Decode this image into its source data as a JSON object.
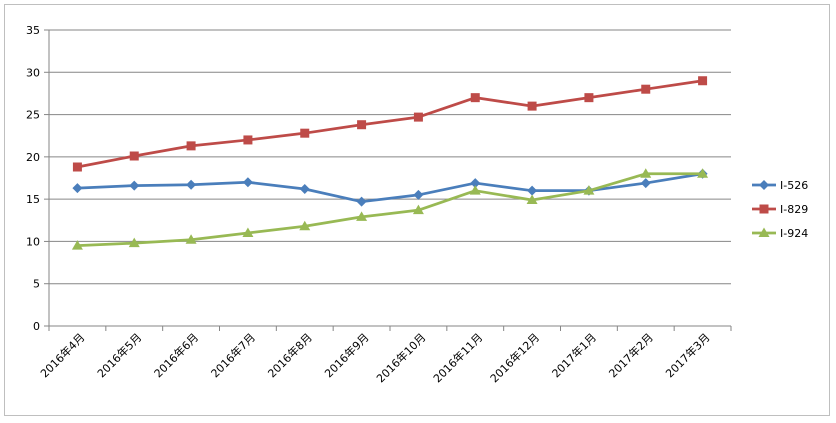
{
  "chart_data": {
    "type": "line",
    "categories": [
      "2016年4月",
      "2016年5月",
      "2016年6月",
      "2016年7月",
      "2016年8月",
      "2016年9月",
      "2016年10月",
      "2016年11月",
      "2016年12月",
      "2017年1月",
      "2017年2月",
      "2017年3月"
    ],
    "series": [
      {
        "name": "I-526",
        "color": "#4a7ebb",
        "marker": "diamond",
        "values": [
          16.3,
          16.6,
          16.7,
          17.0,
          16.2,
          14.7,
          15.5,
          16.9,
          16.0,
          16.0,
          16.9,
          18.0
        ]
      },
      {
        "name": "I-829",
        "color": "#be4b48",
        "marker": "square",
        "values": [
          18.8,
          20.1,
          21.3,
          22.0,
          22.8,
          23.8,
          24.7,
          27.0,
          26.0,
          27.0,
          28.0,
          29.0
        ]
      },
      {
        "name": "I-924",
        "color": "#98b954",
        "marker": "triangle",
        "values": [
          9.5,
          9.8,
          10.2,
          11.0,
          11.8,
          12.9,
          13.7,
          16.0,
          14.9,
          16.0,
          18.0,
          18.0
        ]
      }
    ],
    "ylim": [
      0,
      35
    ],
    "yticks": [
      0,
      5,
      10,
      15,
      20,
      25,
      30,
      35
    ],
    "grid": true,
    "legend": "right",
    "title": "",
    "xlabel": "",
    "ylabel": ""
  }
}
